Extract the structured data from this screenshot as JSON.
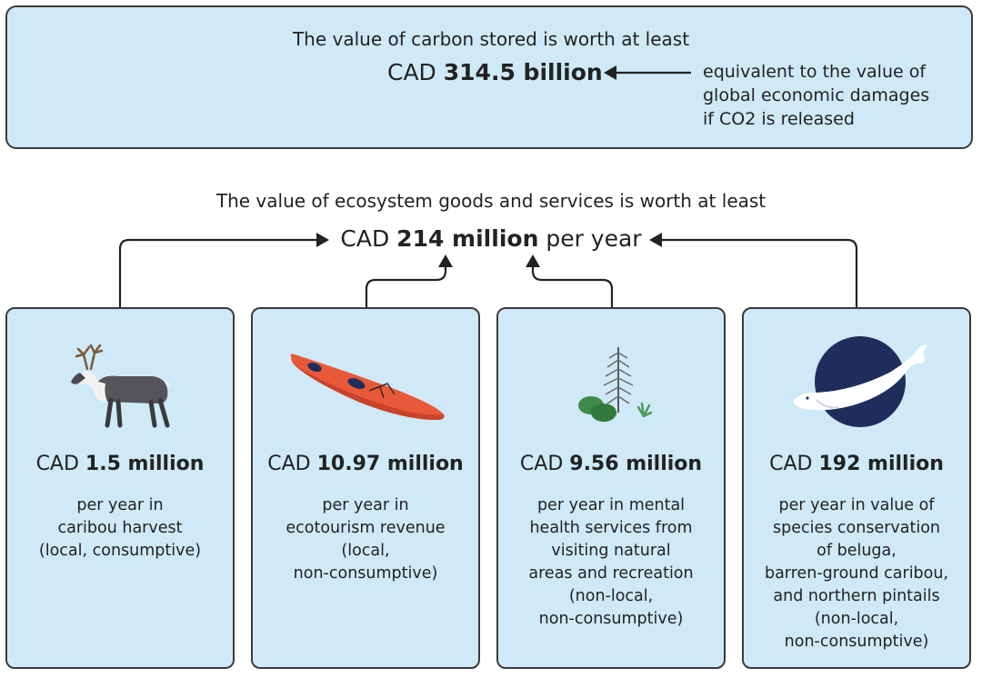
{
  "carbon": {
    "title": "The value of carbon stored is worth at least",
    "amount_prefix": "CAD ",
    "amount_bold": "314.5 billion",
    "note_lines": [
      "equivalent to the value of",
      "global economic damages",
      "if CO2 is released"
    ]
  },
  "ecosystem": {
    "title": "The value of ecosystem goods and services is worth at least",
    "amount_prefix": "CAD ",
    "amount_bold": "214 million",
    "amount_suffix": " per year"
  },
  "cards": [
    {
      "icon": "caribou-icon",
      "amount_prefix": "CAD ",
      "amount_bold": "1.5 million",
      "desc_lines": [
        "per year in",
        "caribou harvest",
        "(local, consumptive)"
      ]
    },
    {
      "icon": "kayak-icon",
      "amount_prefix": "CAD ",
      "amount_bold": "10.97 million",
      "desc_lines": [
        "per year in",
        "ecotourism revenue",
        "(local,",
        "non-consumptive)"
      ]
    },
    {
      "icon": "tree-shrub-icon",
      "amount_prefix": "CAD ",
      "amount_bold": "9.56 million",
      "desc_lines": [
        "per year in mental",
        "health services from",
        "visiting natural",
        "areas and recreation",
        "(non-local,",
        "non-consumptive)"
      ]
    },
    {
      "icon": "beluga-icon",
      "amount_prefix": "CAD ",
      "amount_bold": "192 million",
      "desc_lines": [
        "per year in value of",
        "species conservation",
        "of beluga,",
        "barren-ground caribou,",
        "and northern pintails",
        "(non-local,",
        "non-consumptive)"
      ]
    }
  ],
  "colors": {
    "box_fill": "#cfe9f7",
    "border": "#3b3b3b",
    "kayak": "#e8593a",
    "beluga_circle": "#1f2d5c",
    "shrub_green": "#3f8a4a"
  }
}
